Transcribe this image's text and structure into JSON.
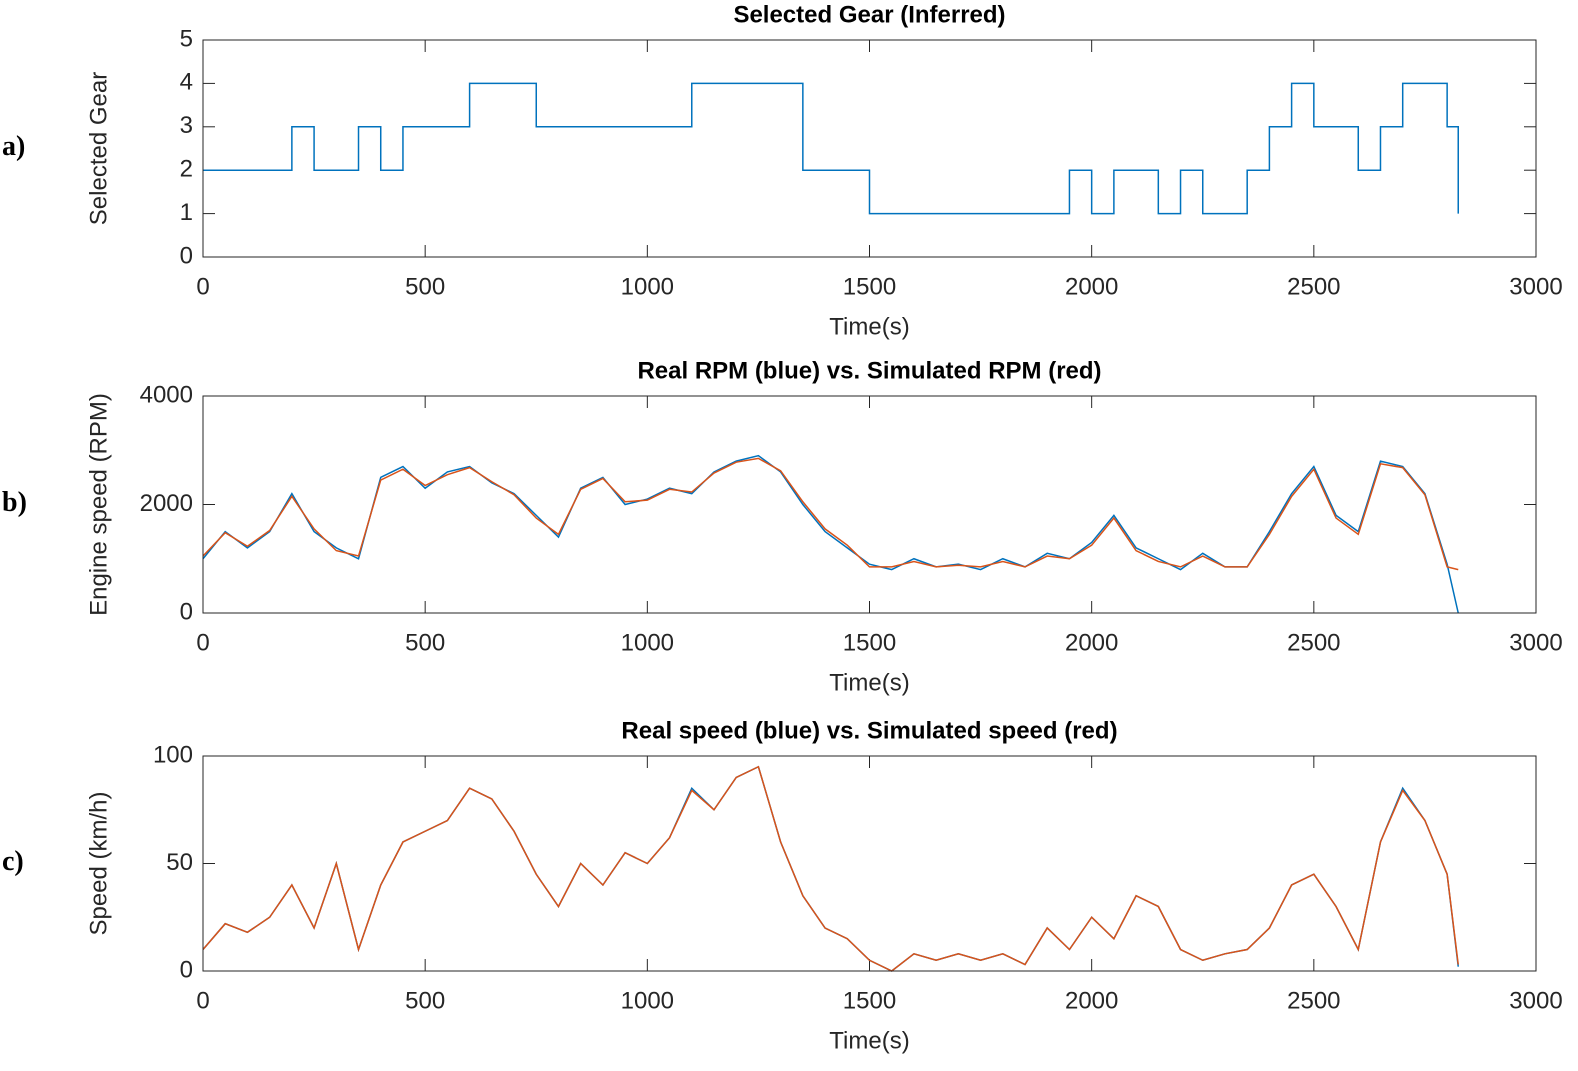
{
  "chart_data": [
    {
      "type": "line",
      "label": "a)",
      "title": "Selected Gear (Inferred)",
      "xlabel": "Time(s)",
      "ylabel": "Selected Gear",
      "drawstyle": "steps-post",
      "x": [
        0,
        50,
        100,
        150,
        200,
        250,
        300,
        350,
        400,
        450,
        500,
        550,
        600,
        650,
        700,
        750,
        800,
        850,
        900,
        950,
        1000,
        1050,
        1100,
        1150,
        1200,
        1250,
        1300,
        1350,
        1400,
        1450,
        1500,
        1550,
        1600,
        1650,
        1700,
        1750,
        1800,
        1850,
        1900,
        1950,
        2000,
        2050,
        2100,
        2150,
        2200,
        2250,
        2300,
        2350,
        2400,
        2450,
        2500,
        2550,
        2600,
        2650,
        2700,
        2750,
        2800,
        2825
      ],
      "series": [
        {
          "name": "Selected gear",
          "color": "#0072BD",
          "values": [
            2,
            2,
            2,
            2,
            3,
            2,
            2,
            3,
            2,
            3,
            3,
            3,
            4,
            4,
            4,
            3,
            3,
            3,
            3,
            3,
            3,
            3,
            4,
            4,
            4,
            4,
            4,
            2,
            2,
            2,
            1,
            1,
            1,
            1,
            1,
            1,
            1,
            1,
            1,
            2,
            1,
            2,
            2,
            1,
            2,
            1,
            1,
            2,
            3,
            4,
            3,
            3,
            2,
            3,
            4,
            4,
            3,
            1
          ]
        }
      ],
      "xlim": [
        0,
        3000
      ],
      "xticks": [
        0,
        500,
        1000,
        1500,
        2000,
        2500,
        3000
      ],
      "ylim": [
        0,
        5
      ],
      "yticks": [
        0,
        1,
        2,
        3,
        4,
        5
      ]
    },
    {
      "type": "line",
      "label": "b)",
      "title": "Real RPM (blue) vs. Simulated RPM (red)",
      "xlabel": "Time(s)",
      "ylabel": "Engine speed (RPM)",
      "x": [
        0,
        50,
        100,
        150,
        200,
        250,
        300,
        350,
        400,
        450,
        500,
        550,
        600,
        650,
        700,
        750,
        800,
        850,
        900,
        950,
        1000,
        1050,
        1100,
        1150,
        1200,
        1250,
        1300,
        1350,
        1400,
        1450,
        1500,
        1550,
        1600,
        1650,
        1700,
        1750,
        1800,
        1850,
        1900,
        1950,
        2000,
        2050,
        2100,
        2150,
        2200,
        2250,
        2300,
        2350,
        2400,
        2450,
        2500,
        2550,
        2600,
        2650,
        2700,
        2750,
        2800,
        2825
      ],
      "series": [
        {
          "name": "Real RPM",
          "color": "#0072BD",
          "values": [
            1000,
            1500,
            1200,
            1500,
            2200,
            1500,
            1200,
            1000,
            2500,
            2700,
            2300,
            2600,
            2700,
            2400,
            2200,
            1800,
            1400,
            2300,
            2500,
            2000,
            2100,
            2300,
            2200,
            2600,
            2800,
            2900,
            2600,
            2000,
            1500,
            1200,
            900,
            800,
            1000,
            850,
            900,
            800,
            1000,
            850,
            1100,
            1000,
            1300,
            1800,
            1200,
            1000,
            800,
            1100,
            850,
            850,
            1500,
            2200,
            2700,
            1800,
            1500,
            2800,
            2700,
            2200,
            900,
            0
          ]
        },
        {
          "name": "Simulated RPM",
          "color": "#D95319",
          "values": [
            1050,
            1480,
            1230,
            1520,
            2150,
            1550,
            1150,
            1050,
            2450,
            2650,
            2350,
            2550,
            2680,
            2420,
            2180,
            1750,
            1450,
            2280,
            2480,
            2050,
            2080,
            2280,
            2230,
            2580,
            2780,
            2850,
            2620,
            2050,
            1550,
            1250,
            850,
            850,
            950,
            850,
            880,
            850,
            950,
            850,
            1050,
            1000,
            1250,
            1750,
            1150,
            950,
            850,
            1050,
            850,
            850,
            1450,
            2150,
            2650,
            1750,
            1450,
            2750,
            2680,
            2180,
            850,
            800
          ]
        }
      ],
      "xlim": [
        0,
        3000
      ],
      "xticks": [
        0,
        500,
        1000,
        1500,
        2000,
        2500,
        3000
      ],
      "ylim": [
        0,
        4000
      ],
      "yticks": [
        0,
        2000,
        4000
      ]
    },
    {
      "type": "line",
      "label": "c)",
      "title": "Real speed (blue) vs. Simulated speed (red)",
      "xlabel": "Time(s)",
      "ylabel": "Speed (km/h)",
      "x": [
        0,
        50,
        100,
        150,
        200,
        250,
        300,
        350,
        400,
        450,
        500,
        550,
        600,
        650,
        700,
        750,
        800,
        850,
        900,
        950,
        1000,
        1050,
        1100,
        1150,
        1200,
        1250,
        1300,
        1350,
        1400,
        1450,
        1500,
        1550,
        1600,
        1650,
        1700,
        1750,
        1800,
        1850,
        1900,
        1950,
        2000,
        2050,
        2100,
        2150,
        2200,
        2250,
        2300,
        2350,
        2400,
        2450,
        2500,
        2550,
        2600,
        2650,
        2700,
        2750,
        2800,
        2825
      ],
      "series": [
        {
          "name": "Real speed",
          "color": "#0072BD",
          "values": [
            10,
            22,
            18,
            25,
            40,
            20,
            50,
            10,
            40,
            60,
            65,
            70,
            85,
            80,
            65,
            45,
            30,
            50,
            40,
            55,
            50,
            62,
            85,
            75,
            90,
            95,
            60,
            35,
            20,
            15,
            5,
            0,
            8,
            5,
            8,
            5,
            8,
            3,
            20,
            10,
            25,
            15,
            35,
            30,
            10,
            5,
            8,
            10,
            20,
            40,
            45,
            30,
            10,
            60,
            85,
            70,
            45,
            2
          ]
        },
        {
          "name": "Simulated speed",
          "color": "#D95319",
          "values": [
            10,
            22,
            18,
            25,
            40,
            20,
            50,
            10,
            40,
            60,
            65,
            70,
            85,
            80,
            65,
            45,
            30,
            50,
            40,
            55,
            50,
            62,
            84,
            75,
            90,
            95,
            60,
            35,
            20,
            15,
            5,
            0,
            8,
            5,
            8,
            5,
            8,
            3,
            20,
            10,
            25,
            15,
            35,
            30,
            10,
            5,
            8,
            10,
            20,
            40,
            45,
            30,
            10,
            60,
            84,
            70,
            45,
            3
          ]
        }
      ],
      "xlim": [
        0,
        3000
      ],
      "xticks": [
        0,
        500,
        1000,
        1500,
        2000,
        2500,
        3000
      ],
      "ylim": [
        0,
        100
      ],
      "yticks": [
        0,
        50,
        100
      ]
    }
  ]
}
